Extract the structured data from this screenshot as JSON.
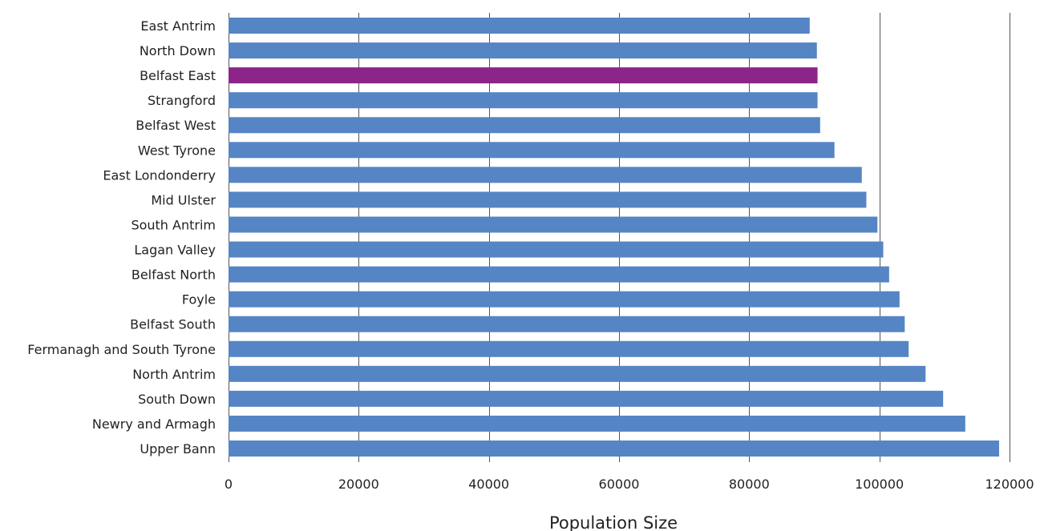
{
  "chart_data": {
    "type": "bar",
    "orientation": "horizontal",
    "categories": [
      "East Antrim",
      "North Down",
      "Belfast East",
      "Strangford",
      "Belfast West",
      "West Tyrone",
      "East Londonderry",
      "Mid Ulster",
      "South Antrim",
      "Lagan Valley",
      "Belfast North",
      "Foyle",
      "Belfast South",
      "Fermanagh and South Tyrone",
      "North Antrim",
      "South Down",
      "Newry and Armagh",
      "Upper Bann"
    ],
    "values": [
      89300,
      90400,
      90500,
      90500,
      90900,
      93100,
      97300,
      98000,
      99700,
      100600,
      101500,
      103100,
      103900,
      104500,
      107100,
      109800,
      113200,
      118400
    ],
    "highlight_category": "Belfast East",
    "title": "",
    "xlabel": "Population Size",
    "ylabel": "",
    "xlim": [
      0,
      120000
    ],
    "x_ticks": [
      0,
      20000,
      40000,
      60000,
      80000,
      100000,
      120000
    ],
    "x_tick_labels": [
      "0",
      "20000",
      "40000",
      "60000",
      "80000",
      "100000",
      "120000"
    ],
    "grid": "vertical",
    "legend": "none",
    "colors": {
      "bar": "#5585c4",
      "highlight": "#8b2589",
      "grid": "#555555"
    }
  }
}
